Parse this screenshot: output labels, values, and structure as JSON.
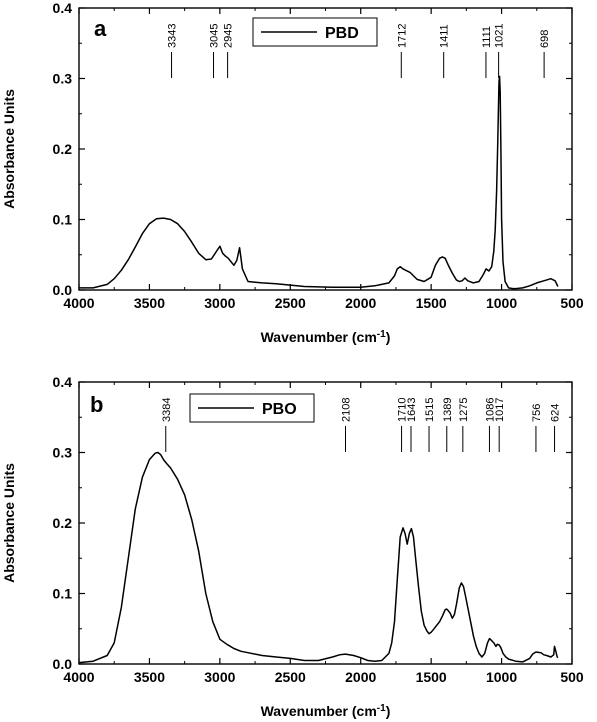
{
  "chart_data": [
    {
      "type": "line",
      "panel": "a",
      "xlabel": "Wavenumber (cm",
      "xlabel_sup": "-1",
      "xlabel_close": ")",
      "ylabel": "Absorbance Units",
      "xlim": [
        4000,
        500
      ],
      "ylim": [
        0.0,
        0.4
      ],
      "x_ticks": [
        4000,
        3500,
        3000,
        2500,
        2000,
        1500,
        1000,
        500
      ],
      "x_tick_labels": [
        "4000",
        "3500",
        "3000",
        "2500",
        "2000",
        "1500",
        "1000",
        "500"
      ],
      "y_ticks": [
        0.0,
        0.1,
        0.2,
        0.3,
        0.4
      ],
      "y_tick_labels": [
        "0.0",
        "0.1",
        "0.2",
        "0.3",
        "0.4"
      ],
      "legend": {
        "label": "PBD",
        "placement": "top-center"
      },
      "peak_labels": [
        {
          "x": 3343,
          "label": "3343"
        },
        {
          "x": 3045,
          "label": "3045"
        },
        {
          "x": 2945,
          "label": "2945"
        },
        {
          "x": 1712,
          "label": "1712"
        },
        {
          "x": 1411,
          "label": "1411"
        },
        {
          "x": 1111,
          "label": "1111"
        },
        {
          "x": 1021,
          "label": "1021"
        },
        {
          "x": 698,
          "label": "698"
        }
      ],
      "series": [
        {
          "name": "PBD",
          "x": [
            4000,
            3900,
            3800,
            3750,
            3700,
            3650,
            3600,
            3550,
            3500,
            3450,
            3400,
            3350,
            3300,
            3250,
            3200,
            3150,
            3100,
            3060,
            3040,
            3020,
            3000,
            2980,
            2960,
            2940,
            2920,
            2900,
            2880,
            2860,
            2840,
            2800,
            2700,
            2600,
            2500,
            2400,
            2200,
            2000,
            1900,
            1800,
            1760,
            1740,
            1720,
            1700,
            1680,
            1650,
            1600,
            1550,
            1500,
            1470,
            1440,
            1420,
            1400,
            1380,
            1350,
            1320,
            1300,
            1280,
            1260,
            1240,
            1200,
            1160,
            1130,
            1110,
            1090,
            1070,
            1055,
            1045,
            1035,
            1028,
            1022,
            1018,
            1014,
            1010,
            1005,
            1000,
            990,
            975,
            950,
            920,
            900,
            850,
            800,
            750,
            700,
            650,
            620,
            600
          ],
          "y": [
            0.003,
            0.003,
            0.008,
            0.016,
            0.028,
            0.043,
            0.061,
            0.08,
            0.094,
            0.101,
            0.102,
            0.1,
            0.094,
            0.083,
            0.068,
            0.052,
            0.043,
            0.044,
            0.05,
            0.056,
            0.062,
            0.052,
            0.048,
            0.045,
            0.04,
            0.035,
            0.042,
            0.06,
            0.03,
            0.012,
            0.01,
            0.009,
            0.007,
            0.005,
            0.004,
            0.004,
            0.006,
            0.01,
            0.02,
            0.03,
            0.033,
            0.03,
            0.028,
            0.025,
            0.015,
            0.012,
            0.018,
            0.035,
            0.045,
            0.047,
            0.045,
            0.036,
            0.024,
            0.014,
            0.012,
            0.013,
            0.017,
            0.013,
            0.01,
            0.012,
            0.022,
            0.03,
            0.027,
            0.033,
            0.055,
            0.085,
            0.14,
            0.2,
            0.262,
            0.296,
            0.303,
            0.28,
            0.2,
            0.1,
            0.04,
            0.012,
            0.003,
            0.002,
            0.002,
            0.003,
            0.006,
            0.01,
            0.013,
            0.016,
            0.013,
            0.005
          ]
        }
      ]
    },
    {
      "type": "line",
      "panel": "b",
      "xlabel": "Wavenumber (cm",
      "xlabel_sup": "-1",
      "xlabel_close": ")",
      "ylabel": "Absorbance Units",
      "xlim": [
        4000,
        500
      ],
      "ylim": [
        0.0,
        0.4
      ],
      "x_ticks": [
        4000,
        3500,
        3000,
        2500,
        2000,
        1500,
        1000,
        500
      ],
      "x_tick_labels": [
        "4000",
        "3500",
        "3000",
        "2500",
        "2000",
        "1500",
        "1000",
        "500"
      ],
      "y_ticks": [
        0.0,
        0.1,
        0.2,
        0.3,
        0.4
      ],
      "y_tick_labels": [
        "0.0",
        "0.1",
        "0.2",
        "0.3",
        "0.4"
      ],
      "legend": {
        "label": "PBO",
        "placement": "top-left"
      },
      "peak_labels": [
        {
          "x": 3384,
          "label": "3384"
        },
        {
          "x": 2108,
          "label": "2108"
        },
        {
          "x": 1710,
          "label": "1710"
        },
        {
          "x": 1643,
          "label": "1643"
        },
        {
          "x": 1515,
          "label": "1515"
        },
        {
          "x": 1389,
          "label": "1389"
        },
        {
          "x": 1275,
          "label": "1275"
        },
        {
          "x": 1086,
          "label": "1086"
        },
        {
          "x": 1017,
          "label": "1017"
        },
        {
          "x": 756,
          "label": "756"
        },
        {
          "x": 624,
          "label": "624"
        }
      ],
      "series": [
        {
          "name": "PBO",
          "x": [
            4000,
            3900,
            3800,
            3750,
            3700,
            3650,
            3600,
            3550,
            3500,
            3460,
            3440,
            3420,
            3400,
            3380,
            3350,
            3300,
            3250,
            3200,
            3150,
            3100,
            3050,
            3000,
            2950,
            2900,
            2850,
            2800,
            2700,
            2600,
            2500,
            2400,
            2300,
            2200,
            2150,
            2108,
            2050,
            2000,
            1950,
            1900,
            1850,
            1800,
            1780,
            1760,
            1740,
            1720,
            1700,
            1685,
            1670,
            1655,
            1640,
            1625,
            1610,
            1590,
            1570,
            1550,
            1530,
            1515,
            1500,
            1480,
            1460,
            1440,
            1420,
            1400,
            1390,
            1380,
            1365,
            1350,
            1335,
            1320,
            1300,
            1285,
            1270,
            1255,
            1240,
            1220,
            1200,
            1180,
            1160,
            1140,
            1120,
            1100,
            1086,
            1070,
            1055,
            1040,
            1030,
            1017,
            1005,
            990,
            970,
            950,
            900,
            850,
            800,
            780,
            756,
            720,
            700,
            680,
            650,
            630,
            624,
            615,
            605,
            600
          ],
          "y": [
            0.002,
            0.004,
            0.012,
            0.03,
            0.08,
            0.15,
            0.22,
            0.265,
            0.29,
            0.299,
            0.3,
            0.297,
            0.29,
            0.285,
            0.278,
            0.262,
            0.24,
            0.205,
            0.16,
            0.1,
            0.06,
            0.035,
            0.028,
            0.022,
            0.018,
            0.016,
            0.012,
            0.01,
            0.008,
            0.005,
            0.005,
            0.01,
            0.013,
            0.014,
            0.012,
            0.009,
            0.005,
            0.004,
            0.005,
            0.015,
            0.03,
            0.06,
            0.12,
            0.18,
            0.193,
            0.185,
            0.17,
            0.185,
            0.192,
            0.18,
            0.15,
            0.11,
            0.075,
            0.055,
            0.047,
            0.043,
            0.045,
            0.05,
            0.055,
            0.06,
            0.068,
            0.077,
            0.078,
            0.076,
            0.072,
            0.065,
            0.07,
            0.085,
            0.108,
            0.115,
            0.11,
            0.095,
            0.08,
            0.06,
            0.04,
            0.025,
            0.015,
            0.01,
            0.015,
            0.03,
            0.036,
            0.033,
            0.03,
            0.025,
            0.028,
            0.027,
            0.023,
            0.015,
            0.01,
            0.007,
            0.004,
            0.003,
            0.008,
            0.014,
            0.017,
            0.016,
            0.013,
            0.012,
            0.01,
            0.013,
            0.025,
            0.018,
            0.01,
            0.009
          ]
        }
      ]
    }
  ]
}
